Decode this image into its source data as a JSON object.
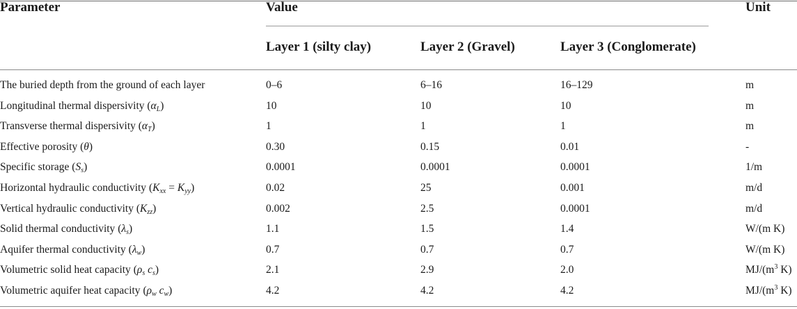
{
  "table": {
    "headers": {
      "parameter": "Parameter",
      "value": "Value",
      "unit": "Unit",
      "layers": [
        "Layer 1 (silty clay)",
        "Layer 2 (Gravel)",
        "Layer 3 (Conglomerate)"
      ]
    },
    "rows": [
      {
        "parameter": "The buried depth from the ground of each layer",
        "symbol": "",
        "l1": "0–6",
        "l2": "6–16",
        "l3": "16–129",
        "unit": "m"
      },
      {
        "parameter": "Longitudinal thermal dispersivity",
        "symbol": "αL",
        "l1": "10",
        "l2": "10",
        "l3": "10",
        "unit": "m"
      },
      {
        "parameter": "Transverse thermal dispersivity",
        "symbol": "αT",
        "l1": "1",
        "l2": "1",
        "l3": "1",
        "unit": "m"
      },
      {
        "parameter": "Effective porosity",
        "symbol": "θ",
        "l1": "0.30",
        "l2": "0.15",
        "l3": "0.01",
        "unit": "-"
      },
      {
        "parameter": "Specific storage",
        "symbol": "Ss",
        "l1": "0.0001",
        "l2": "0.0001",
        "l3": "0.0001",
        "unit": "1/m"
      },
      {
        "parameter": "Horizontal hydraulic conductivity",
        "symbol": "Kxx = Kyy",
        "l1": "0.02",
        "l2": "25",
        "l3": "0.001",
        "unit": "m/d"
      },
      {
        "parameter": "Vertical hydraulic conductivity",
        "symbol": "Kzz",
        "l1": "0.002",
        "l2": "2.5",
        "l3": "0.0001",
        "unit": "m/d"
      },
      {
        "parameter": "Solid thermal conductivity",
        "symbol": "λs",
        "l1": "1.1",
        "l2": "1.5",
        "l3": "1.4",
        "unit": "W/(m K)"
      },
      {
        "parameter": "Aquifer thermal conductivity",
        "symbol": "λw",
        "l1": "0.7",
        "l2": "0.7",
        "l3": "0.7",
        "unit": "W/(m K)"
      },
      {
        "parameter": "Volumetric solid heat capacity",
        "symbol": "ρs cs",
        "l1": "2.1",
        "l2": "2.9",
        "l3": "2.0",
        "unit": "MJ/(m3 K)"
      },
      {
        "parameter": "Volumetric aquifer heat capacity",
        "symbol": "ρw cw",
        "l1": "4.2",
        "l2": "4.2",
        "l3": "4.2",
        "unit": "MJ/(m3 K)"
      }
    ]
  }
}
